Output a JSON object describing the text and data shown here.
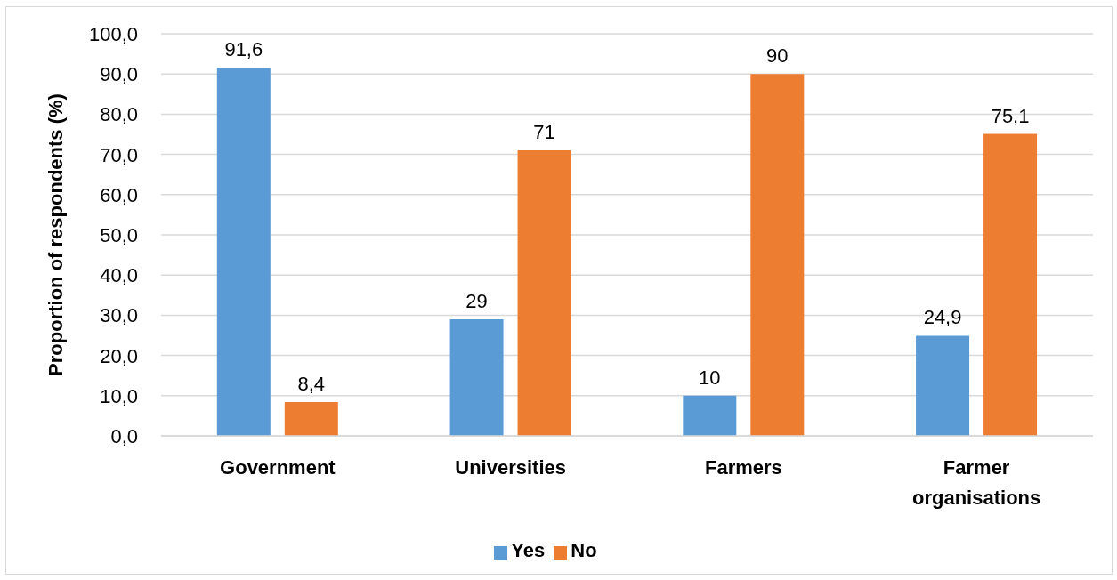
{
  "chart_data": {
    "type": "bar",
    "ylabel": "Proportion of respondents (%)",
    "categories": [
      "Government",
      "Universities",
      "Farmers",
      "Farmer organisations"
    ],
    "series": [
      {
        "name": "Yes",
        "color": "#5b9bd5",
        "values": [
          91.6,
          29,
          10,
          24.9
        ],
        "value_labels": [
          "91,6",
          "29",
          "10",
          "24,9"
        ]
      },
      {
        "name": "No",
        "color": "#ed7d31",
        "values": [
          8.4,
          71,
          90,
          75.1
        ],
        "value_labels": [
          "8,4",
          "71",
          "90",
          "75,1"
        ]
      }
    ],
    "ylim": [
      0,
      100
    ],
    "yticks": [
      {
        "value": 0,
        "label": "0,0"
      },
      {
        "value": 10,
        "label": "10,0"
      },
      {
        "value": 20,
        "label": "20,0"
      },
      {
        "value": 30,
        "label": "30,0"
      },
      {
        "value": 40,
        "label": "40,0"
      },
      {
        "value": 50,
        "label": "50,0"
      },
      {
        "value": 60,
        "label": "60,0"
      },
      {
        "value": 70,
        "label": "70,0"
      },
      {
        "value": 80,
        "label": "80,0"
      },
      {
        "value": 90,
        "label": "90,0"
      },
      {
        "value": 100,
        "label": "100,0"
      }
    ],
    "grid": "y",
    "legend": "bottom"
  }
}
